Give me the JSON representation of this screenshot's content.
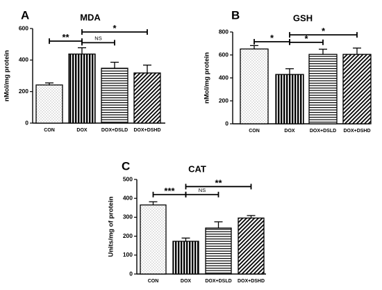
{
  "figure": {
    "bg": "#ffffff"
  },
  "chart_data": [
    {
      "type": "bar",
      "panel": "A",
      "title": "MDA",
      "ylabel": "nMol/mg protein",
      "xlabel": "",
      "ylim": [
        0,
        600
      ],
      "yticks": [
        0,
        200,
        400,
        600
      ],
      "categories": [
        "CON",
        "DOX",
        "DOX+DSLD",
        "DOX+DSHD"
      ],
      "values": [
        242,
        438,
        348,
        318
      ],
      "errors": [
        13,
        40,
        38,
        50
      ],
      "patterns": [
        "dots",
        "vertical",
        "horizontal",
        "diagonal"
      ],
      "significance": [
        {
          "from": 0,
          "to": 1,
          "label": "**",
          "y": 520
        },
        {
          "from": 1,
          "to": 2,
          "label": "NS",
          "y": 510
        },
        {
          "from": 1,
          "to": 3,
          "label": "*",
          "y": 578
        }
      ]
    },
    {
      "type": "bar",
      "panel": "B",
      "title": "GSH",
      "ylabel": "nMol/mg protein",
      "xlabel": "",
      "ylim": [
        0,
        800
      ],
      "yticks": [
        0,
        200,
        400,
        600,
        800
      ],
      "categories": [
        "CON",
        "DOX",
        "DOX+DSLD",
        "DOX+DSHD"
      ],
      "values": [
        652,
        430,
        605,
        605
      ],
      "errors": [
        30,
        50,
        45,
        55
      ],
      "patterns": [
        "dots",
        "vertical",
        "horizontal",
        "diagonal"
      ],
      "significance": [
        {
          "from": 0,
          "to": 1,
          "label": "*",
          "y": 715
        },
        {
          "from": 1,
          "to": 2,
          "label": "*",
          "y": 710
        },
        {
          "from": 1,
          "to": 3,
          "label": "*",
          "y": 775
        }
      ]
    },
    {
      "type": "bar",
      "panel": "C",
      "title": "CAT",
      "ylabel": "Units/mg of protein",
      "xlabel": "",
      "ylim": [
        0,
        500
      ],
      "yticks": [
        0,
        100,
        200,
        300,
        400,
        500
      ],
      "categories": [
        "CON",
        "DOX",
        "DOX+DSLD",
        "DOX+DSHD"
      ],
      "values": [
        365,
        173,
        243,
        296
      ],
      "errors": [
        17,
        17,
        33,
        13
      ],
      "patterns": [
        "dots",
        "vertical",
        "horizontal",
        "diagonal"
      ],
      "significance": [
        {
          "from": 0,
          "to": 1,
          "label": "***",
          "y": 420
        },
        {
          "from": 1,
          "to": 2,
          "label": "NS",
          "y": 420
        },
        {
          "from": 1,
          "to": 3,
          "label": "**",
          "y": 462
        }
      ]
    }
  ]
}
